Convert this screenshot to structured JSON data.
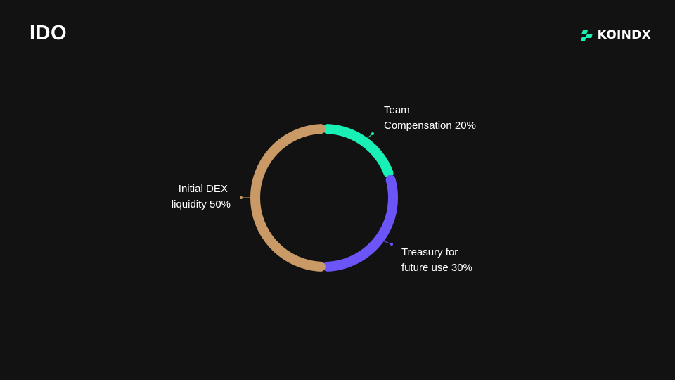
{
  "header": {
    "title": "IDO",
    "brand_name": "KOINDX",
    "brand_icon": "koindx-logo-icon",
    "brand_color": "#19f0b5"
  },
  "chart_data": {
    "type": "pie",
    "style": "donut",
    "slices": [
      {
        "label_lines": [
          "Team",
          "Compensation 20%"
        ],
        "value": 20,
        "color": "#19f0b5"
      },
      {
        "label_lines": [
          "Treasury for",
          "future use 30%"
        ],
        "value": 30,
        "color": "#6c55f8"
      },
      {
        "label_lines": [
          "Initial DEX",
          "liquidity 50%"
        ],
        "value": 50,
        "color": "#c99a66"
      }
    ]
  }
}
